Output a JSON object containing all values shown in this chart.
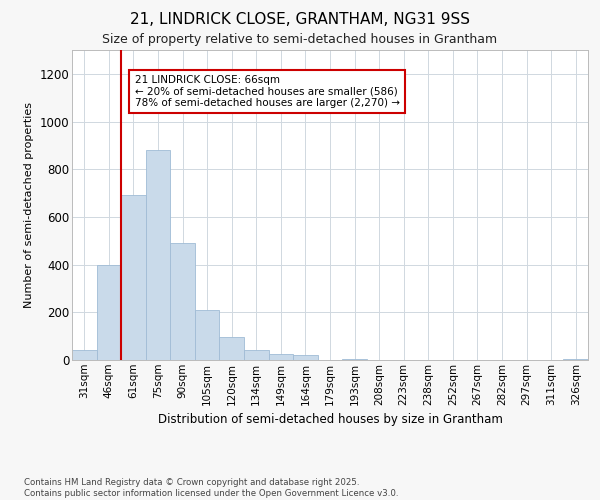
{
  "title_line1": "21, LINDRICK CLOSE, GRANTHAM, NG31 9SS",
  "title_line2": "Size of property relative to semi-detached houses in Grantham",
  "xlabel": "Distribution of semi-detached houses by size in Grantham",
  "ylabel": "Number of semi-detached properties",
  "categories": [
    "31sqm",
    "46sqm",
    "61sqm",
    "75sqm",
    "90sqm",
    "105sqm",
    "120sqm",
    "134sqm",
    "149sqm",
    "164sqm",
    "179sqm",
    "193sqm",
    "208sqm",
    "223sqm",
    "238sqm",
    "252sqm",
    "267sqm",
    "282sqm",
    "297sqm",
    "311sqm",
    "326sqm"
  ],
  "values": [
    40,
    400,
    690,
    880,
    490,
    210,
    95,
    40,
    25,
    20,
    0,
    5,
    0,
    0,
    0,
    0,
    0,
    0,
    0,
    0,
    5
  ],
  "bar_color": "#c9daea",
  "bar_edge_color": "#a0bcd5",
  "annotation_text": "21 LINDRICK CLOSE: 66sqm\n← 20% of semi-detached houses are smaller (586)\n78% of semi-detached houses are larger (2,270) →",
  "annotation_box_color": "#ffffff",
  "annotation_box_edge": "#cc0000",
  "vline_color": "#cc0000",
  "vline_x_index": 2.0,
  "ylim": [
    0,
    1300
  ],
  "yticks": [
    0,
    200,
    400,
    600,
    800,
    1000,
    1200
  ],
  "footer_text": "Contains HM Land Registry data © Crown copyright and database right 2025.\nContains public sector information licensed under the Open Government Licence v3.0.",
  "bg_color": "#f7f7f7",
  "plot_bg_color": "#ffffff",
  "grid_color": "#d0d8e0"
}
